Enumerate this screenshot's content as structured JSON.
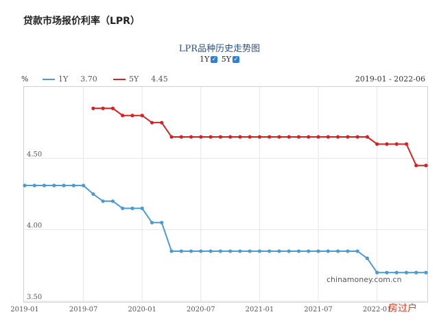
{
  "page_title": "贷款市场报价利率（LPR）",
  "chart_title": "LPR品种历史走势图",
  "toggles": [
    {
      "label": "1Y",
      "checked": true
    },
    {
      "label": "5Y",
      "checked": true
    }
  ],
  "legend": [
    {
      "name": "1Y",
      "value": "3.70",
      "color": "#4a9ad4"
    },
    {
      "name": "5Y",
      "value": "4.45",
      "color": "#d9201f"
    }
  ],
  "unit": "%",
  "date_range": "2019-01 - 2022-06",
  "watermark": "chinamoney.com.cn",
  "stamp": "房过户",
  "chart_data": {
    "type": "line",
    "x_ticks": [
      "2019-01",
      "2019-07",
      "2020-01",
      "2020-07",
      "2021-01",
      "2021-07",
      "2022-01"
    ],
    "y_ticks": [
      "3.50",
      "4.00",
      "4.50"
    ],
    "ylim": [
      3.5,
      5.0
    ],
    "xlim": [
      "2019-01",
      "2022-06"
    ],
    "grid": true,
    "series": [
      {
        "name": "1Y",
        "color": "#4a9ad4",
        "points": [
          [
            "2019-01",
            4.31
          ],
          [
            "2019-02",
            4.31
          ],
          [
            "2019-03",
            4.31
          ],
          [
            "2019-04",
            4.31
          ],
          [
            "2019-05",
            4.31
          ],
          [
            "2019-06",
            4.31
          ],
          [
            "2019-07",
            4.31
          ],
          [
            "2019-08",
            4.25
          ],
          [
            "2019-09",
            4.2
          ],
          [
            "2019-10",
            4.2
          ],
          [
            "2019-11",
            4.15
          ],
          [
            "2019-12",
            4.15
          ],
          [
            "2020-01",
            4.15
          ],
          [
            "2020-02",
            4.05
          ],
          [
            "2020-03",
            4.05
          ],
          [
            "2020-04",
            3.85
          ],
          [
            "2020-05",
            3.85
          ],
          [
            "2020-06",
            3.85
          ],
          [
            "2020-07",
            3.85
          ],
          [
            "2020-08",
            3.85
          ],
          [
            "2020-09",
            3.85
          ],
          [
            "2020-10",
            3.85
          ],
          [
            "2020-11",
            3.85
          ],
          [
            "2020-12",
            3.85
          ],
          [
            "2021-01",
            3.85
          ],
          [
            "2021-02",
            3.85
          ],
          [
            "2021-03",
            3.85
          ],
          [
            "2021-04",
            3.85
          ],
          [
            "2021-05",
            3.85
          ],
          [
            "2021-06",
            3.85
          ],
          [
            "2021-07",
            3.85
          ],
          [
            "2021-08",
            3.85
          ],
          [
            "2021-09",
            3.85
          ],
          [
            "2021-10",
            3.85
          ],
          [
            "2021-11",
            3.85
          ],
          [
            "2021-12",
            3.8
          ],
          [
            "2022-01",
            3.7
          ],
          [
            "2022-02",
            3.7
          ],
          [
            "2022-03",
            3.7
          ],
          [
            "2022-04",
            3.7
          ],
          [
            "2022-05",
            3.7
          ],
          [
            "2022-06",
            3.7
          ]
        ]
      },
      {
        "name": "5Y",
        "color": "#d9201f",
        "points": [
          [
            "2019-08",
            4.85
          ],
          [
            "2019-09",
            4.85
          ],
          [
            "2019-10",
            4.85
          ],
          [
            "2019-11",
            4.8
          ],
          [
            "2019-12",
            4.8
          ],
          [
            "2020-01",
            4.8
          ],
          [
            "2020-02",
            4.75
          ],
          [
            "2020-03",
            4.75
          ],
          [
            "2020-04",
            4.65
          ],
          [
            "2020-05",
            4.65
          ],
          [
            "2020-06",
            4.65
          ],
          [
            "2020-07",
            4.65
          ],
          [
            "2020-08",
            4.65
          ],
          [
            "2020-09",
            4.65
          ],
          [
            "2020-10",
            4.65
          ],
          [
            "2020-11",
            4.65
          ],
          [
            "2020-12",
            4.65
          ],
          [
            "2021-01",
            4.65
          ],
          [
            "2021-02",
            4.65
          ],
          [
            "2021-03",
            4.65
          ],
          [
            "2021-04",
            4.65
          ],
          [
            "2021-05",
            4.65
          ],
          [
            "2021-06",
            4.65
          ],
          [
            "2021-07",
            4.65
          ],
          [
            "2021-08",
            4.65
          ],
          [
            "2021-09",
            4.65
          ],
          [
            "2021-10",
            4.65
          ],
          [
            "2021-11",
            4.65
          ],
          [
            "2021-12",
            4.65
          ],
          [
            "2022-01",
            4.6
          ],
          [
            "2022-02",
            4.6
          ],
          [
            "2022-03",
            4.6
          ],
          [
            "2022-04",
            4.6
          ],
          [
            "2022-05",
            4.45
          ],
          [
            "2022-06",
            4.45
          ]
        ]
      }
    ]
  }
}
